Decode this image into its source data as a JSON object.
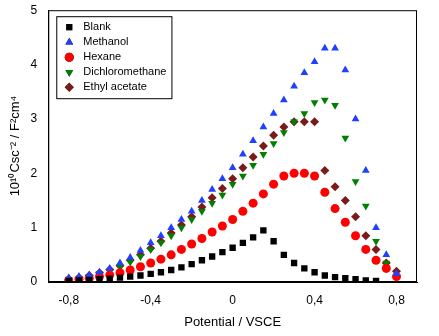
{
  "chart_data": {
    "type": "scatter",
    "x_label": "Potential / VSCE",
    "y_label": "10¹⁰Csc⁻² / F²cm⁴",
    "xlim": [
      -0.9,
      0.9
    ],
    "xticks": [
      {
        "value": -0.8,
        "label": "-0,8"
      },
      {
        "value": -0.4,
        "label": "-0,4"
      },
      0,
      {
        "value": 0.4,
        "label": "0,4"
      },
      {
        "value": 0.8,
        "label": "0,8"
      }
    ],
    "ylim": [
      0,
      5
    ],
    "yticks": [
      0,
      1,
      2,
      3,
      4,
      5
    ],
    "grid": false,
    "legend": "top-left",
    "series": [
      {
        "name": "Blank",
        "color": "#000000",
        "marker": "square",
        "x": [
          -0.8,
          -0.75,
          -0.7,
          -0.65,
          -0.6,
          -0.55,
          -0.5,
          -0.45,
          -0.4,
          -0.35,
          -0.3,
          -0.25,
          -0.2,
          -0.15,
          -0.1,
          -0.05,
          0,
          0.05,
          0.1,
          0.15,
          0.2,
          0.25,
          0.3,
          0.35,
          0.4,
          0.45,
          0.5,
          0.55,
          0.6,
          0.65,
          0.7
        ],
        "values": [
          0.02,
          0.03,
          0.04,
          0.05,
          0.06,
          0.08,
          0.1,
          0.12,
          0.15,
          0.18,
          0.22,
          0.27,
          0.33,
          0.4,
          0.47,
          0.55,
          0.63,
          0.72,
          0.82,
          0.95,
          0.75,
          0.5,
          0.35,
          0.25,
          0.18,
          0.12,
          0.09,
          0.07,
          0.05,
          0.03,
          0.02
        ]
      },
      {
        "name": "Methanol",
        "color": "#2040ff",
        "marker": "triangle",
        "x": [
          -0.8,
          -0.75,
          -0.7,
          -0.65,
          -0.6,
          -0.55,
          -0.5,
          -0.45,
          -0.4,
          -0.35,
          -0.3,
          -0.25,
          -0.2,
          -0.15,
          -0.1,
          -0.05,
          0,
          0.05,
          0.1,
          0.15,
          0.2,
          0.25,
          0.3,
          0.35,
          0.4,
          0.45,
          0.5,
          0.55,
          0.6,
          0.65,
          0.7,
          0.75,
          0.8
        ],
        "values": [
          0.08,
          0.1,
          0.13,
          0.18,
          0.25,
          0.35,
          0.45,
          0.58,
          0.72,
          0.85,
          1.0,
          1.15,
          1.3,
          1.5,
          1.7,
          1.9,
          2.1,
          2.35,
          2.6,
          2.85,
          3.1,
          3.35,
          3.6,
          3.85,
          4.05,
          4.3,
          4.3,
          3.9,
          3.0,
          2.05,
          1.0,
          0.5,
          0.15
        ]
      },
      {
        "name": "Hexane",
        "color": "#ff0000",
        "marker": "circle",
        "x": [
          -0.8,
          -0.75,
          -0.7,
          -0.65,
          -0.6,
          -0.55,
          -0.5,
          -0.45,
          -0.4,
          -0.35,
          -0.3,
          -0.25,
          -0.2,
          -0.15,
          -0.1,
          -0.05,
          0,
          0.05,
          0.1,
          0.15,
          0.2,
          0.25,
          0.3,
          0.35,
          0.4,
          0.45,
          0.5,
          0.55,
          0.6,
          0.65,
          0.7,
          0.75,
          0.8
        ],
        "values": [
          0.03,
          0.05,
          0.07,
          0.1,
          0.13,
          0.17,
          0.22,
          0.28,
          0.35,
          0.42,
          0.5,
          0.6,
          0.7,
          0.8,
          0.92,
          1.03,
          1.15,
          1.3,
          1.45,
          1.62,
          1.8,
          1.95,
          2.0,
          2.0,
          1.95,
          1.65,
          1.35,
          1.1,
          0.85,
          0.6,
          0.4,
          0.25,
          0.1
        ]
      },
      {
        "name": "Dichloromethane",
        "color": "#008000",
        "marker": "triangle_down",
        "x": [
          -0.8,
          -0.75,
          -0.7,
          -0.65,
          -0.6,
          -0.55,
          -0.5,
          -0.45,
          -0.4,
          -0.35,
          -0.3,
          -0.25,
          -0.2,
          -0.15,
          -0.1,
          -0.05,
          0,
          0.05,
          0.1,
          0.15,
          0.2,
          0.25,
          0.3,
          0.35,
          0.4,
          0.45,
          0.5,
          0.55,
          0.6,
          0.65,
          0.7,
          0.75,
          0.8
        ],
        "values": [
          0.05,
          0.07,
          0.1,
          0.15,
          0.2,
          0.28,
          0.37,
          0.47,
          0.6,
          0.72,
          0.85,
          1.0,
          1.15,
          1.3,
          1.45,
          1.6,
          1.8,
          1.95,
          2.15,
          2.35,
          2.55,
          2.75,
          2.95,
          3.1,
          3.3,
          3.35,
          3.25,
          2.65,
          1.85,
          1.4,
          0.75,
          0.35,
          0.1
        ]
      },
      {
        "name": "Ethyl acetate",
        "color": "#7b1a1a",
        "marker": "diamond",
        "x": [
          -0.8,
          -0.75,
          -0.7,
          -0.65,
          -0.6,
          -0.55,
          -0.5,
          -0.45,
          -0.4,
          -0.35,
          -0.3,
          -0.25,
          -0.2,
          -0.15,
          -0.1,
          -0.05,
          0,
          0.05,
          0.1,
          0.15,
          0.2,
          0.25,
          0.3,
          0.35,
          0.4,
          0.45,
          0.5,
          0.55,
          0.6,
          0.65,
          0.7,
          0.75,
          0.8
        ],
        "values": [
          0.05,
          0.08,
          0.12,
          0.17,
          0.23,
          0.3,
          0.4,
          0.5,
          0.62,
          0.75,
          0.9,
          1.05,
          1.2,
          1.38,
          1.55,
          1.72,
          1.9,
          2.1,
          2.3,
          2.5,
          2.7,
          2.85,
          2.95,
          2.95,
          2.95,
          2.05,
          1.75,
          1.5,
          1.2,
          0.85,
          0.6,
          0.35,
          0.2
        ]
      }
    ]
  }
}
